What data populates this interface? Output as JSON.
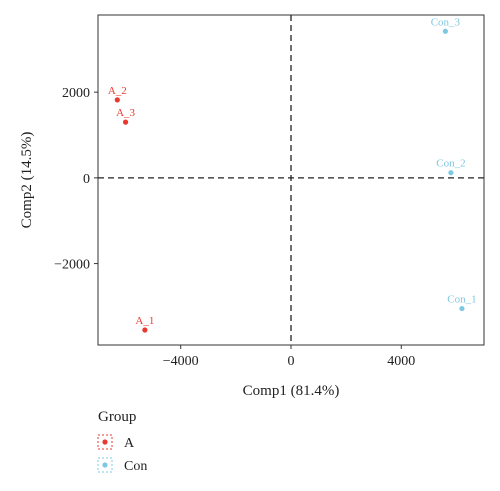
{
  "chart_data": {
    "type": "scatter",
    "xlabel": "Comp1 (81.4%)",
    "ylabel": "Comp2 (14.5%)",
    "xlim": [
      -7000,
      7000
    ],
    "ylim": [
      -3900,
      3800
    ],
    "x_ticks": [
      -4000,
      0,
      4000
    ],
    "x_tick_labels": [
      "−4000",
      "0",
      "4000"
    ],
    "y_ticks": [
      -2000,
      0,
      2000
    ],
    "y_tick_labels": [
      "−2000",
      "0",
      "2000"
    ],
    "reference_lines": {
      "x": 0,
      "y": 0,
      "style": "dashed"
    },
    "grid": false,
    "legend": {
      "title": "Group",
      "placement": "bottom-left",
      "entries": [
        {
          "name": "A",
          "color": "#e8392f"
        },
        {
          "name": "Con",
          "color": "#7ec8e3"
        }
      ]
    },
    "series": [
      {
        "name": "A",
        "color": "#e8392f",
        "points": [
          {
            "label": "A_1",
            "x": -5300,
            "y": -3550
          },
          {
            "label": "A_2",
            "x": -6300,
            "y": 1820
          },
          {
            "label": "A_3",
            "x": -6000,
            "y": 1300
          }
        ]
      },
      {
        "name": "Con",
        "color": "#7ec8e3",
        "points": [
          {
            "label": "Con_1",
            "x": 6200,
            "y": -3050
          },
          {
            "label": "Con_2",
            "x": 5800,
            "y": 120
          },
          {
            "label": "Con_3",
            "x": 5600,
            "y": 3420
          }
        ]
      }
    ]
  }
}
